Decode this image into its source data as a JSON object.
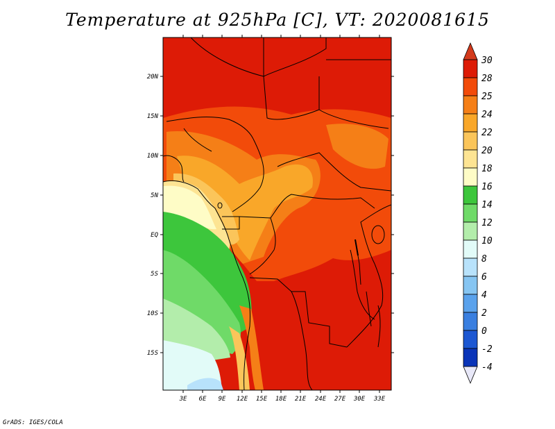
{
  "title": "Temperature at 925hPa [C], VT: 2020081615",
  "credit": "GrADS: IGES/COLA",
  "map": {
    "lat_ticks": [
      "20N",
      "15N",
      "10N",
      "5N",
      "EQ",
      "5S",
      "10S",
      "15S"
    ],
    "lon_ticks": [
      "3E",
      "6E",
      "9E",
      "12E",
      "15E",
      "18E",
      "21E",
      "24E",
      "27E",
      "30E",
      "33E"
    ]
  },
  "colorbar": {
    "labels": [
      "30",
      "28",
      "25",
      "24",
      "22",
      "20",
      "18",
      "16",
      "14",
      "12",
      "10",
      "8",
      "6",
      "4",
      "2",
      "0",
      "-2",
      "-4"
    ],
    "colors": {
      "above_30": "#d33a1c",
      "28_30": "#dd1b06",
      "25_28": "#f24b0a",
      "24_25": "#f57f17",
      "22_24": "#f9a729",
      "20_22": "#fbc55a",
      "18_20": "#fde493",
      "16_18": "#fefcc6",
      "14_16": "#3dc63c",
      "12_14": "#6fda68",
      "10_12": "#b3edab",
      "8_10": "#e2fbf8",
      "6_8": "#b8e2fb",
      "4_6": "#86c5f2",
      "2_4": "#5aa2ec",
      "0_2": "#3a7fe0",
      "-2_0": "#1c57d2",
      "-4_-2": "#0a34b8",
      "below_-4": "#07107a",
      "lowest_arrow": "#e8e8f8"
    }
  }
}
